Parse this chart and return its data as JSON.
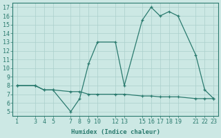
{
  "xlabel": "Humidex (Indice chaleur)",
  "line1_x": [
    1,
    3,
    4,
    5,
    7,
    8,
    9,
    10,
    12,
    13,
    15,
    16,
    17,
    18,
    19,
    21,
    22,
    23
  ],
  "line1_y": [
    8,
    8,
    7.5,
    7.5,
    5,
    6.5,
    10.5,
    13,
    13,
    8,
    15.5,
    17,
    16,
    16.5,
    16,
    11.5,
    7.5,
    6.5
  ],
  "line2_x": [
    1,
    3,
    4,
    5,
    7,
    8,
    9,
    10,
    12,
    13,
    15,
    16,
    17,
    18,
    19,
    21,
    22,
    23
  ],
  "line2_y": [
    8,
    8,
    7.5,
    7.5,
    7.3,
    7.3,
    7.0,
    7.0,
    7.0,
    7.0,
    6.8,
    6.8,
    6.7,
    6.7,
    6.7,
    6.5,
    6.5,
    6.5
  ],
  "line_color": "#2a7a6e",
  "bg_color": "#cce8e4",
  "grid_color": "#aacfcb",
  "xlim": [
    0.5,
    23.5
  ],
  "ylim": [
    4.5,
    17.5
  ],
  "yticks": [
    5,
    6,
    7,
    8,
    9,
    10,
    11,
    12,
    13,
    14,
    15,
    16,
    17
  ],
  "xtick_positions": [
    1,
    3,
    4,
    5,
    7,
    8,
    9,
    10,
    12,
    13,
    15,
    16,
    17,
    18,
    19,
    21,
    22,
    23
  ],
  "xtick_labels": [
    "1",
    "3",
    "4",
    "5",
    "7",
    "8",
    "9",
    "10",
    "12",
    "13",
    "15",
    "16",
    "17",
    "18",
    "19",
    "21",
    "22",
    "23"
  ]
}
